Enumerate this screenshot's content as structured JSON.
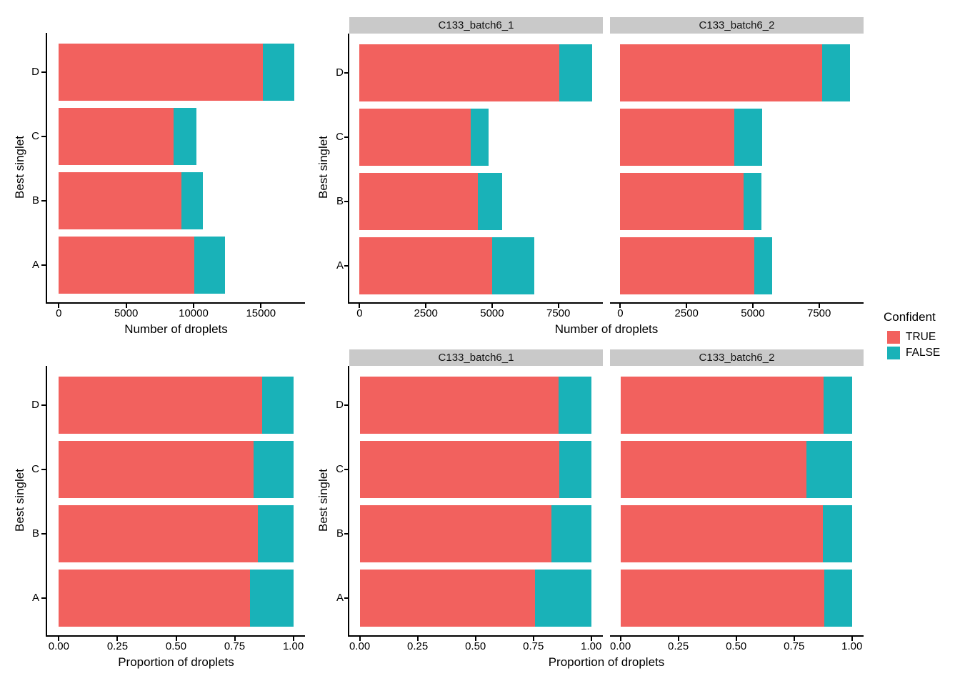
{
  "figure": {
    "background": "#ffffff",
    "strip_background": "#C9C9C9",
    "axis_color": "#000000"
  },
  "legend": {
    "title": "Confident",
    "items": [
      {
        "label": "TRUE",
        "color": "#F2615E"
      },
      {
        "label": "FALSE",
        "color": "#19B2B8"
      }
    ]
  },
  "chart_data": [
    {
      "id": "counts_combined",
      "type": "bar",
      "orientation": "horizontal",
      "stacked": true,
      "xlabel": "Number of droplets",
      "ylabel": "Best singlet",
      "categories": [
        "D",
        "C",
        "B",
        "A"
      ],
      "x_ticks": {
        "values": [
          0,
          5000,
          10000,
          15000
        ],
        "labels": [
          "0",
          "5000",
          "10000",
          "15000"
        ]
      },
      "x_range": [
        -865,
        18270
      ],
      "facets": [
        {
          "label": "",
          "series": [
            {
              "name": "TRUE",
              "values": [
                15160,
                8500,
                9100,
                10050
              ]
            },
            {
              "name": "FALSE",
              "values": [
                2300,
                1730,
                1600,
                2280
              ]
            }
          ]
        }
      ]
    },
    {
      "id": "counts_by_batch",
      "type": "bar",
      "orientation": "horizontal",
      "stacked": true,
      "xlabel": "Number of droplets",
      "ylabel": "Best singlet",
      "categories": [
        "D",
        "C",
        "B",
        "A"
      ],
      "x_ticks": {
        "values": [
          0,
          2500,
          5000,
          7500
        ],
        "labels": [
          "0",
          "2500",
          "5000",
          "7500"
        ]
      },
      "x_range": [
        -390,
        9180
      ],
      "facets": [
        {
          "label": "C133_batch6_1",
          "series": [
            {
              "name": "TRUE",
              "values": [
                7540,
                4200,
                4450,
                5000
              ]
            },
            {
              "name": "FALSE",
              "values": [
                1240,
                680,
                930,
                1600
              ]
            }
          ]
        },
        {
          "label": "C133_batch6_2",
          "series": [
            {
              "name": "TRUE",
              "values": [
                7620,
                4300,
                4650,
                5050
              ]
            },
            {
              "name": "FALSE",
              "values": [
                1060,
                1050,
                670,
                680
              ]
            }
          ]
        }
      ]
    },
    {
      "id": "proportions_combined",
      "type": "bar",
      "orientation": "horizontal",
      "stacked": true,
      "xlabel": "Proportion of droplets",
      "ylabel": "Best singlet",
      "categories": [
        "D",
        "C",
        "B",
        "A"
      ],
      "x_ticks": {
        "values": [
          0,
          0.25,
          0.5,
          0.75,
          1
        ],
        "labels": [
          "0.00",
          "0.25",
          "0.50",
          "0.75",
          "1.00"
        ]
      },
      "x_range": [
        -0.05,
        1.05
      ],
      "facets": [
        {
          "label": "",
          "series": [
            {
              "name": "TRUE",
              "values": [
                0.868,
                0.831,
                0.85,
                0.815
              ]
            },
            {
              "name": "FALSE",
              "values": [
                0.132,
                0.169,
                0.15,
                0.185
              ]
            }
          ]
        }
      ]
    },
    {
      "id": "proportions_by_batch",
      "type": "bar",
      "orientation": "horizontal",
      "stacked": true,
      "xlabel": "Proportion of droplets",
      "ylabel": "Best singlet",
      "categories": [
        "D",
        "C",
        "B",
        "A"
      ],
      "x_ticks": {
        "values": [
          0,
          0.25,
          0.5,
          0.75,
          1
        ],
        "labels": [
          "0.00",
          "0.25",
          "0.50",
          "0.75",
          "1.00"
        ]
      },
      "x_range": [
        -0.045,
        1.05
      ],
      "facets": [
        {
          "label": "C133_batch6_1",
          "series": [
            {
              "name": "TRUE",
              "values": [
                0.859,
                0.861,
                0.827,
                0.758
              ]
            },
            {
              "name": "FALSE",
              "values": [
                0.141,
                0.139,
                0.173,
                0.242
              ]
            }
          ]
        },
        {
          "label": "C133_batch6_2",
          "series": [
            {
              "name": "TRUE",
              "values": [
                0.878,
                0.804,
                0.874,
                0.881
              ]
            },
            {
              "name": "FALSE",
              "values": [
                0.122,
                0.196,
                0.126,
                0.119
              ]
            }
          ]
        }
      ]
    }
  ]
}
